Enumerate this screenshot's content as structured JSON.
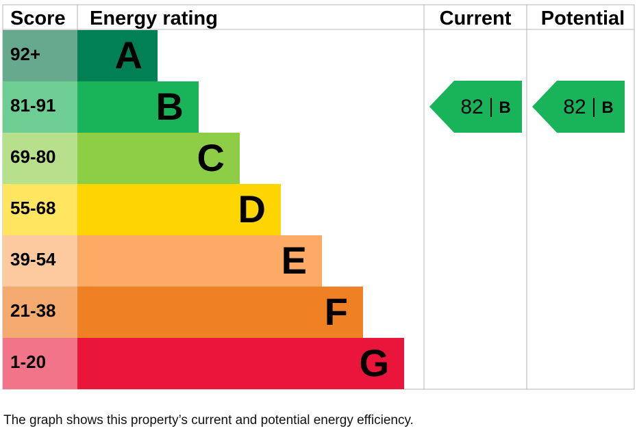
{
  "chart_data": {
    "type": "table",
    "headers": {
      "score": "Score",
      "rating": "Energy rating",
      "current": "Current",
      "potential": "Potential"
    },
    "bands": [
      {
        "range": "92+",
        "letter": "A",
        "color": "#008054",
        "score_color": "#66a98f"
      },
      {
        "range": "81-91",
        "letter": "B",
        "color": "#19b459",
        "score_color": "#6dcd92"
      },
      {
        "range": "69-80",
        "letter": "C",
        "color": "#8dce46",
        "score_color": "#b6e08c"
      },
      {
        "range": "55-68",
        "letter": "D",
        "color": "#ffd500",
        "score_color": "#ffe560"
      },
      {
        "range": "39-54",
        "letter": "E",
        "color": "#fcaa65",
        "score_color": "#fdcaa0"
      },
      {
        "range": "21-38",
        "letter": "F",
        "color": "#ef8023",
        "score_color": "#f4a96f"
      },
      {
        "range": "1-20",
        "letter": "G",
        "color": "#e9153b",
        "score_color": "#f17489"
      }
    ],
    "current": {
      "value": 82,
      "band": "B"
    },
    "potential": {
      "value": 82,
      "band": "B"
    }
  },
  "caption": "The graph shows this property’s current and potential energy efficiency."
}
